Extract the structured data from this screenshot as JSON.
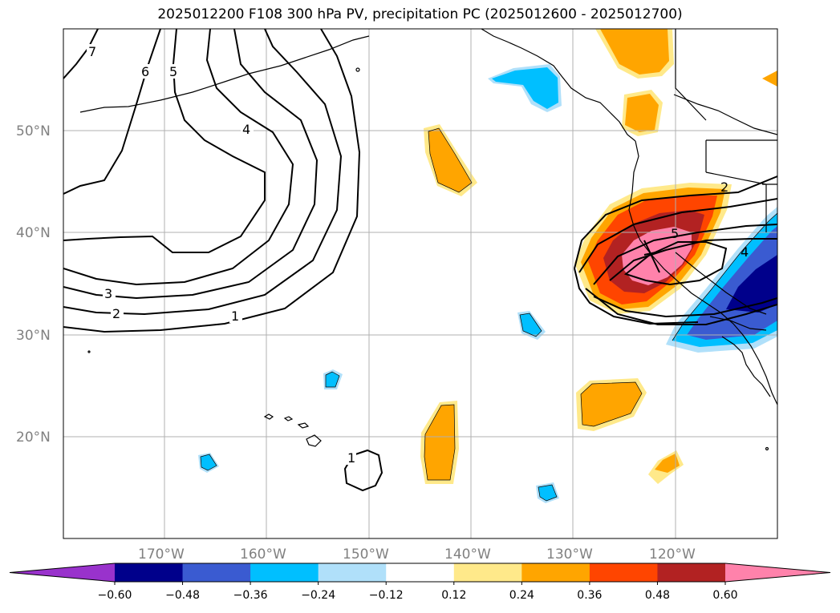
{
  "title": "2025012200 F108 300 hPa PV, precipitation PC (2025012600 - 2025012700)",
  "axes": {
    "lon_labels": [
      "170°W",
      "160°W",
      "150°W",
      "140°W",
      "130°W",
      "120°W"
    ],
    "lat_labels": [
      "50°N",
      "40°N",
      "30°N",
      "20°N"
    ]
  },
  "colorbar": {
    "ticks": [
      "−0.60",
      "−0.48",
      "−0.36",
      "−0.24",
      "−0.12",
      "0.12",
      "0.24",
      "0.36",
      "0.48",
      "0.60"
    ],
    "colors": [
      "#9932cc",
      "#00008b",
      "#3a5bd1",
      "#00bfff",
      "#b0e0fa",
      "#ffffff",
      "#ffe98a",
      "#ffa500",
      "#ff4500",
      "#b22222",
      "#ff82ab"
    ]
  },
  "contour_labels": [
    "7",
    "6",
    "5",
    "4",
    "3",
    "2",
    "1",
    "2",
    "4",
    "5",
    "1"
  ]
}
